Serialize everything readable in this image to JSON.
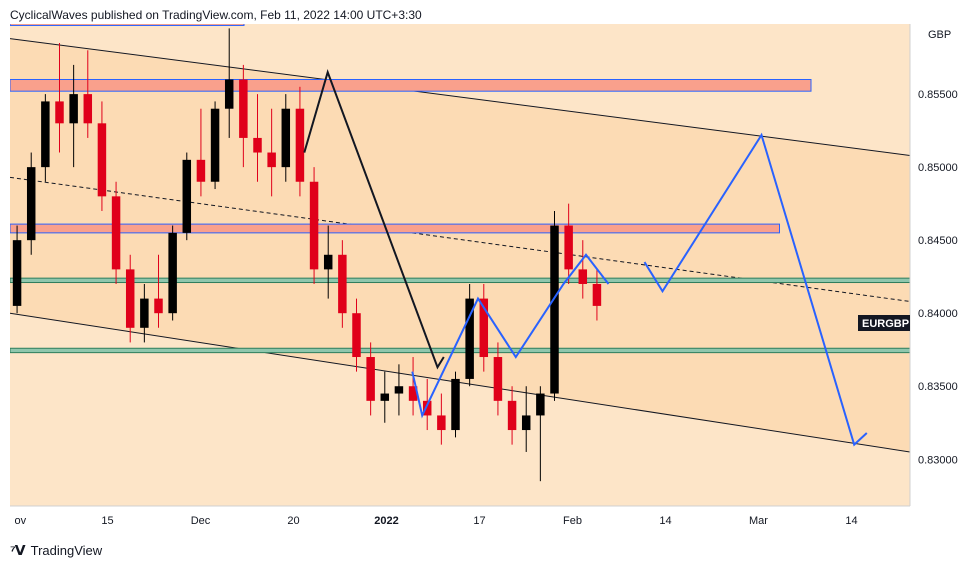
{
  "header": {
    "attribution": "CyclicalWaves published on TradingView.com, Feb 11, 2022 14:00 UTC+3:30"
  },
  "footer": {
    "brand": "TradingView",
    "logo": "tradingview-logo-icon"
  },
  "colors": {
    "up": "#000000",
    "down": "#e0001a",
    "forecast": "#2962ff",
    "channel_fill": "#fbd9b0",
    "resistance_zone": "#f9a08c",
    "support_zone": "#8fc6ac"
  },
  "chart_data": {
    "type": "candlestick",
    "symbol": "EURGBP",
    "currency": "GBP",
    "price_range": [
      0.8268,
      0.8598
    ],
    "y_ticks": [
      0.83,
      0.835,
      0.84,
      0.845,
      0.85,
      0.855
    ],
    "y_tick_labels": [
      "0.83000",
      "0.83500",
      "0.84000",
      "0.84500",
      "0.85000",
      "0.85500"
    ],
    "x_tick_labels": [
      "ov",
      "15",
      "Dec",
      "20",
      "2022",
      "17",
      "Feb",
      "14",
      "Mar",
      "14"
    ],
    "last_price_label": "EURGBP",
    "ohlc_samples": [
      [
        0.8405,
        0.846,
        0.84,
        0.845
      ],
      [
        0.845,
        0.851,
        0.844,
        0.85
      ],
      [
        0.85,
        0.855,
        0.849,
        0.8545
      ],
      [
        0.8545,
        0.8585,
        0.851,
        0.853
      ],
      [
        0.853,
        0.857,
        0.85,
        0.855
      ],
      [
        0.855,
        0.858,
        0.852,
        0.853
      ],
      [
        0.853,
        0.8545,
        0.847,
        0.848
      ],
      [
        0.848,
        0.849,
        0.842,
        0.843
      ],
      [
        0.843,
        0.844,
        0.838,
        0.839
      ],
      [
        0.839,
        0.842,
        0.838,
        0.841
      ],
      [
        0.841,
        0.844,
        0.839,
        0.84
      ],
      [
        0.84,
        0.846,
        0.8395,
        0.8455
      ],
      [
        0.8455,
        0.851,
        0.845,
        0.8505
      ],
      [
        0.8505,
        0.854,
        0.848,
        0.849
      ],
      [
        0.849,
        0.8545,
        0.8485,
        0.854
      ],
      [
        0.854,
        0.8595,
        0.852,
        0.856
      ],
      [
        0.856,
        0.857,
        0.85,
        0.852
      ],
      [
        0.852,
        0.855,
        0.849,
        0.851
      ],
      [
        0.851,
        0.854,
        0.848,
        0.85
      ],
      [
        0.85,
        0.855,
        0.849,
        0.854
      ],
      [
        0.854,
        0.8555,
        0.848,
        0.849
      ],
      [
        0.849,
        0.85,
        0.842,
        0.843
      ],
      [
        0.843,
        0.846,
        0.841,
        0.844
      ],
      [
        0.844,
        0.845,
        0.839,
        0.84
      ],
      [
        0.84,
        0.841,
        0.836,
        0.837
      ],
      [
        0.837,
        0.838,
        0.833,
        0.834
      ],
      [
        0.834,
        0.836,
        0.8325,
        0.8345
      ],
      [
        0.8345,
        0.8365,
        0.833,
        0.835
      ],
      [
        0.835,
        0.837,
        0.833,
        0.834
      ],
      [
        0.834,
        0.8355,
        0.832,
        0.833
      ],
      [
        0.833,
        0.8345,
        0.831,
        0.832
      ],
      [
        0.832,
        0.836,
        0.8315,
        0.8355
      ],
      [
        0.8355,
        0.842,
        0.835,
        0.841
      ],
      [
        0.841,
        0.842,
        0.836,
        0.837
      ],
      [
        0.837,
        0.838,
        0.833,
        0.834
      ],
      [
        0.834,
        0.835,
        0.831,
        0.832
      ],
      [
        0.832,
        0.835,
        0.8305,
        0.833
      ],
      [
        0.833,
        0.835,
        0.8285,
        0.8345
      ],
      [
        0.8345,
        0.847,
        0.834,
        0.846
      ],
      [
        0.846,
        0.8475,
        0.842,
        0.843
      ],
      [
        0.843,
        0.845,
        0.841,
        0.842
      ],
      [
        0.842,
        0.843,
        0.8395,
        0.8405
      ]
    ],
    "zones": {
      "resistance_top": [
        0.8597,
        0.86
      ],
      "resistance_upper": [
        0.8552,
        0.856
      ],
      "resistance_mid": [
        0.8455,
        0.8461
      ],
      "support_mid": [
        0.8421,
        0.8424
      ],
      "support_low": [
        0.8373,
        0.8376
      ]
    },
    "channel": {
      "upper": [
        [
          0,
          0.8588
        ],
        [
          1,
          0.8508
        ]
      ],
      "lower": [
        [
          0,
          0.84
        ],
        [
          1,
          0.8305
        ]
      ],
      "median": [
        [
          0,
          0.8493
        ],
        [
          1,
          0.8408
        ]
      ]
    },
    "forecast_path": [
      [
        0.705,
        0.8435
      ],
      [
        0.725,
        0.8415
      ],
      [
        0.835,
        0.8522
      ],
      [
        0.938,
        0.831
      ],
      [
        0.952,
        0.8318
      ]
    ],
    "blue_wave": [
      [
        0.447,
        0.836
      ],
      [
        0.458,
        0.833
      ],
      [
        0.52,
        0.841
      ],
      [
        0.562,
        0.837
      ],
      [
        0.615,
        0.842
      ],
      [
        0.64,
        0.844
      ],
      [
        0.665,
        0.842
      ]
    ],
    "black_wave": [
      [
        0.327,
        0.851
      ],
      [
        0.353,
        0.8565
      ],
      [
        0.475,
        0.8363
      ],
      [
        0.482,
        0.837
      ]
    ]
  }
}
